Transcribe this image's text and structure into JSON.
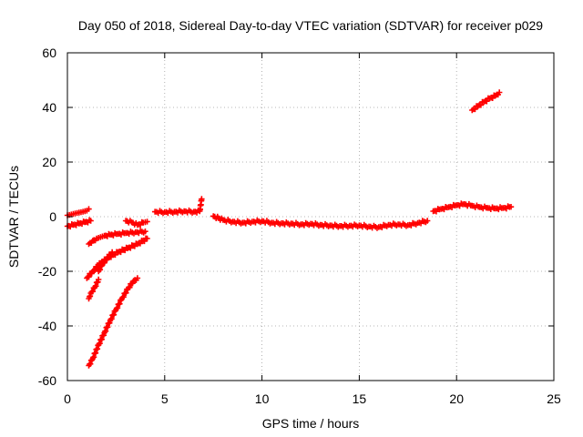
{
  "chart_data": {
    "type": "scatter",
    "title": "Day 050 of 2018, Sidereal Day-to-day VTEC variation (SDTVAR) for receiver p029",
    "xlabel": "GPS time / hours",
    "ylabel": "SDTVAR / TECUs",
    "xlim": [
      0,
      25
    ],
    "ylim": [
      -60,
      60
    ],
    "xticks": [
      "0",
      "5",
      "10",
      "15",
      "20",
      "25"
    ],
    "yticks": [
      "-60",
      "-40",
      "-20",
      "0",
      "20",
      "40",
      "60"
    ],
    "grid": true,
    "marker": "+",
    "color": "#ff0000",
    "series": [
      {
        "name": "s1",
        "x": [
          0.0,
          0.2,
          0.4,
          0.6,
          0.8,
          1.0,
          1.1
        ],
        "y": [
          0.5,
          0.8,
          1.2,
          1.5,
          1.8,
          2.2,
          2.8
        ]
      },
      {
        "name": "s2",
        "x": [
          0.0,
          0.3,
          0.6,
          0.9,
          1.2
        ],
        "y": [
          -3.5,
          -3.0,
          -2.5,
          -2.0,
          -1.5
        ]
      },
      {
        "name": "s3",
        "x": [
          1.1,
          1.3,
          1.5,
          1.7,
          1.9,
          2.2,
          2.6,
          3.0,
          3.5,
          4.0
        ],
        "y": [
          -10.0,
          -8.8,
          -8.0,
          -7.5,
          -7.0,
          -6.6,
          -6.3,
          -6.0,
          -5.7,
          -5.4
        ]
      },
      {
        "name": "s4",
        "x": [
          1.0,
          1.3,
          1.7,
          2.1,
          2.6,
          3.1,
          3.6,
          4.1
        ],
        "y": [
          -22.5,
          -20.0,
          -17.0,
          -15.0,
          -13.0,
          -11.5,
          -10.0,
          -8.0
        ]
      },
      {
        "name": "s5",
        "x": [
          1.1,
          1.2,
          1.4,
          1.6
        ],
        "y": [
          -30.0,
          -28.0,
          -26.0,
          -23.0
        ]
      },
      {
        "name": "s6",
        "x": [
          1.1,
          1.3,
          1.6,
          1.9,
          2.2,
          2.5,
          2.8,
          3.1,
          3.4,
          3.6
        ],
        "y": [
          -54.5,
          -52.0,
          -47.0,
          -42.5,
          -38.0,
          -34.0,
          -30.0,
          -26.5,
          -23.5,
          -22.5
        ]
      },
      {
        "name": "s7",
        "x": [
          1.6,
          1.8,
          2.0,
          2.3
        ],
        "y": [
          -20.0,
          -17.5,
          -15.5,
          -13.0
        ]
      },
      {
        "name": "s8",
        "x": [
          3.0,
          3.3,
          3.6,
          3.9,
          4.1
        ],
        "y": [
          -1.5,
          -2.0,
          -3.0,
          -2.2,
          -1.8
        ]
      },
      {
        "name": "s9",
        "x": [
          4.5,
          5.0,
          5.5,
          6.0,
          6.5,
          6.8,
          6.9
        ],
        "y": [
          1.8,
          1.7,
          1.8,
          2.0,
          1.8,
          2.0,
          6.5
        ]
      },
      {
        "name": "s10",
        "x": [
          7.5,
          8.0,
          8.5,
          9.0,
          9.5,
          10.0,
          10.5,
          11.0,
          11.5,
          12.0,
          12.5,
          13.0,
          13.5,
          14.0,
          14.5,
          15.0,
          15.5,
          16.0,
          16.5,
          17.0,
          17.5,
          18.0,
          18.5
        ],
        "y": [
          0.2,
          -1.2,
          -1.8,
          -2.2,
          -1.8,
          -1.6,
          -2.2,
          -2.4,
          -2.5,
          -2.8,
          -2.6,
          -3.0,
          -3.2,
          -3.4,
          -3.3,
          -3.2,
          -3.6,
          -3.8,
          -3.0,
          -2.8,
          -3.1,
          -2.3,
          -1.5
        ]
      },
      {
        "name": "s11",
        "x": [
          18.8,
          19.2,
          19.6,
          20.0,
          20.4,
          20.8,
          21.2,
          21.6,
          22.0,
          22.4,
          22.8
        ],
        "y": [
          2.0,
          2.8,
          3.5,
          4.2,
          4.6,
          4.0,
          3.5,
          3.2,
          3.0,
          3.2,
          3.6
        ]
      },
      {
        "name": "s12",
        "x": [
          20.8,
          21.1,
          21.4,
          21.7,
          22.0,
          22.2
        ],
        "y": [
          39.0,
          40.5,
          42.0,
          43.3,
          44.3,
          45.5
        ]
      }
    ]
  }
}
